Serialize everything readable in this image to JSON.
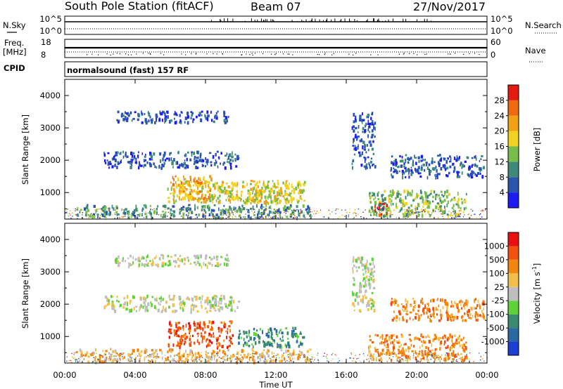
{
  "header": {
    "station": "South Pole Station (fitACF)",
    "beam": "Beam 07",
    "date": "27/Nov/2017"
  },
  "top_panels": {
    "nsky_label": "N.Sky",
    "nsky_ticks": [
      "10^5",
      "10^0"
    ],
    "nsearch_label": "N.Search",
    "nsearch_ticks": [
      "10^5",
      "10^0"
    ],
    "freq_label_1": "Freq.",
    "freq_label_2": "[MHz]",
    "freq_ticks": [
      "18",
      "8"
    ],
    "nave_label": "Nave",
    "nave_ticks": [
      "60",
      "0"
    ],
    "cpid_label": "CPID",
    "cpid_text": "normalsound (fast) 157 RF"
  },
  "chart_data": [
    {
      "type": "heatmap",
      "name": "power",
      "ylabel": "Slant Range [km]",
      "xlabel": "",
      "yticks": [
        "1000",
        "2000",
        "3000",
        "4000"
      ],
      "ylim": [
        180,
        4500
      ],
      "xlim": [
        0,
        24
      ],
      "colorbar_label": "Power [dB]",
      "colorbar_ticks": [
        "4",
        "8",
        "12",
        "16",
        "20",
        "24",
        "28"
      ],
      "colorbar_colors": [
        "#1c1cf2",
        "#2a55ae",
        "#3e8a78",
        "#78bc4c",
        "#f2d21e",
        "#f2a016",
        "#f26a10",
        "#e41c10"
      ],
      "regions": [
        {
          "t0": 0.6,
          "t1": 13.9,
          "r0": 250,
          "r1": 650,
          "level": 2
        },
        {
          "t0": 5.8,
          "t1": 13.6,
          "r0": 700,
          "r1": 1400,
          "level": 4
        },
        {
          "t0": 6.1,
          "t1": 8.3,
          "r0": 800,
          "r1": 1550,
          "level": 5
        },
        {
          "t0": 10.4,
          "t1": 12.9,
          "r0": 750,
          "r1": 1250,
          "level": 4
        },
        {
          "t0": 2.2,
          "t1": 9.9,
          "r0": 1800,
          "r1": 2300,
          "level": 1
        },
        {
          "t0": 2.8,
          "t1": 9.3,
          "r0": 3200,
          "r1": 3550,
          "level": 1
        },
        {
          "t0": 16.3,
          "t1": 17.6,
          "r0": 1800,
          "r1": 3500,
          "level": 1
        },
        {
          "t0": 17.2,
          "t1": 22.8,
          "r0": 300,
          "r1": 1100,
          "level": 3
        },
        {
          "t0": 17.6,
          "t1": 18.3,
          "r0": 350,
          "r1": 700,
          "level": 7
        },
        {
          "t0": 18.5,
          "t1": 23.8,
          "r0": 1500,
          "r1": 2200,
          "level": 1
        }
      ]
    },
    {
      "type": "heatmap",
      "name": "velocity",
      "ylabel": "Slant Range [km]",
      "xlabel": "Time UT",
      "xticks": [
        "00:00",
        "04:00",
        "08:00",
        "12:00",
        "16:00",
        "20:00",
        "00:00"
      ],
      "yticks": [
        "1000",
        "2000",
        "3000",
        "4000"
      ],
      "ylim": [
        180,
        4500
      ],
      "xlim": [
        0,
        24
      ],
      "colorbar_label": "Velocity [m s-1]",
      "colorbar_ticks": [
        "1000",
        "500",
        "100",
        "25",
        "-25",
        "-100",
        "-500",
        "-1000"
      ],
      "colorbar_colors": [
        "#1c3ed2",
        "#2a6aa2",
        "#3a8a6e",
        "#5ed236",
        "#bebebe",
        "#f2c04a",
        "#f2860e",
        "#f25210",
        "#e81010"
      ],
      "regions": [
        {
          "t0": 0.6,
          "t1": 13.9,
          "r0": 250,
          "r1": 650,
          "level": 5
        },
        {
          "t0": 5.8,
          "t1": 9.5,
          "r0": 700,
          "r1": 1500,
          "level": 7
        },
        {
          "t0": 9.8,
          "t1": 13.6,
          "r0": 700,
          "r1": 1300,
          "level": 2
        },
        {
          "t0": 2.2,
          "t1": 9.9,
          "r0": 1800,
          "r1": 2300,
          "level": 4
        },
        {
          "t0": 2.8,
          "t1": 9.3,
          "r0": 3200,
          "r1": 3550,
          "level": 4
        },
        {
          "t0": 16.3,
          "t1": 17.6,
          "r0": 1800,
          "r1": 3500,
          "level": 4
        },
        {
          "t0": 17.2,
          "t1": 22.8,
          "r0": 300,
          "r1": 1100,
          "level": 6
        },
        {
          "t0": 18.5,
          "t1": 23.8,
          "r0": 1500,
          "r1": 2200,
          "level": 6
        }
      ]
    }
  ]
}
